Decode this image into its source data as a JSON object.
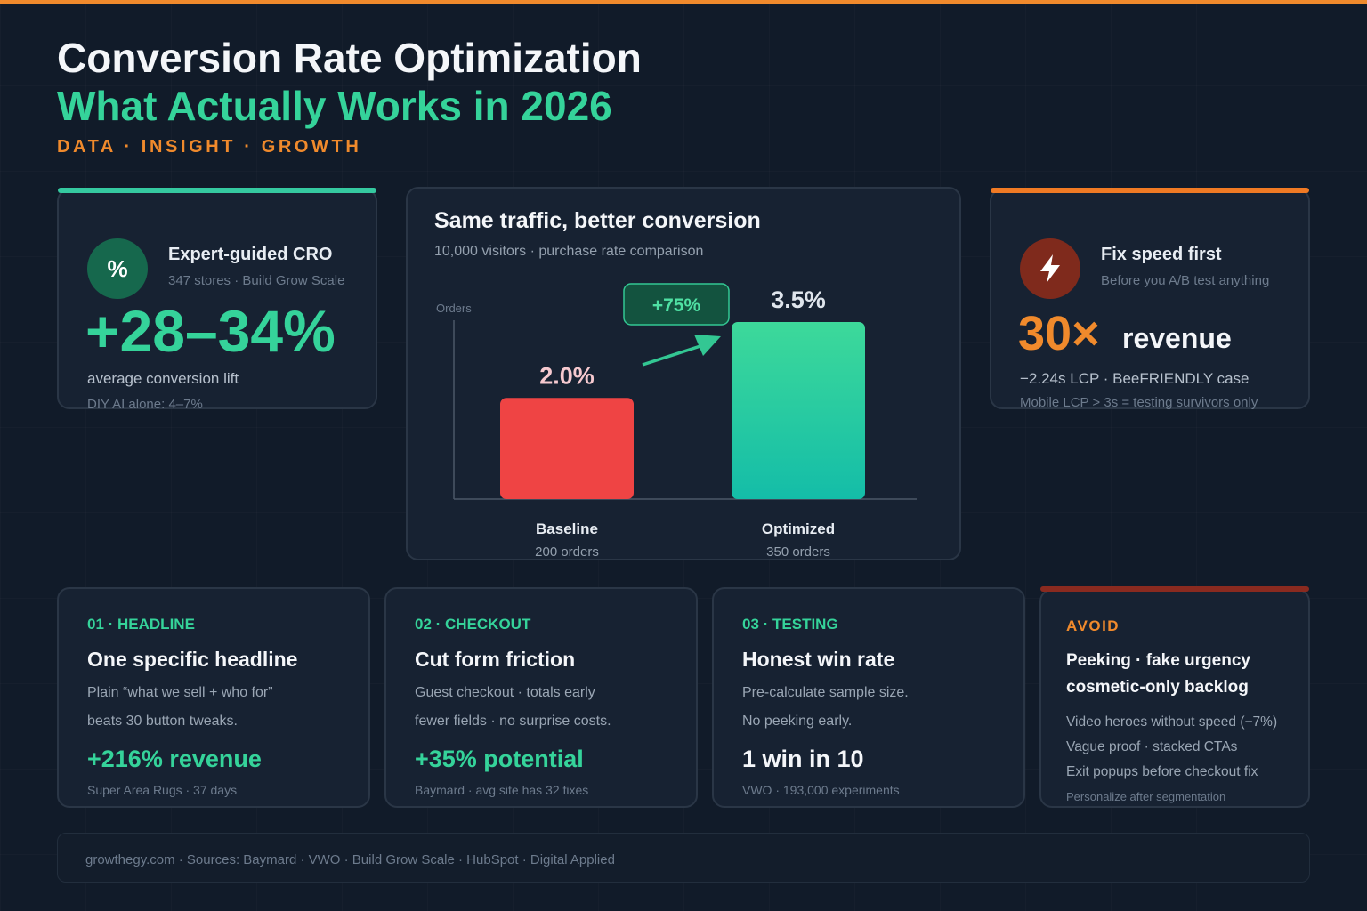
{
  "header": {
    "title": "Conversion Rate Optimization",
    "subtitle": "What Actually Works in 2026",
    "tagline": "DATA · INSIGHT · GROWTH"
  },
  "colors": {
    "accent_green": "#35d39a",
    "accent_orange": "#f08a2c",
    "baseline_red": "#ef4444",
    "optimized_teal": "#1cc1a3"
  },
  "stat_left": {
    "icon": "percent-icon",
    "icon_text": "%",
    "heading": "Expert-guided CRO",
    "sub": "347 stores · Build Grow Scale",
    "value": "+28–34%",
    "desc": "average conversion lift",
    "note": "DIY AI alone: 4–7%"
  },
  "stat_right": {
    "icon": "lightning-icon",
    "heading": "Fix speed first",
    "sub": "Before you A/B test anything",
    "value": "30×",
    "value_suffix": "revenue",
    "desc": "−2.24s LCP · BeeFRIENDLY case",
    "note": "Mobile LCP > 3s = testing survivors only"
  },
  "chart": {
    "title": "Same traffic, better conversion",
    "subtitle": "10,000 visitors · purchase rate comparison",
    "lift_badge": "+75%"
  },
  "chart_data": {
    "type": "bar",
    "title": "Same traffic, better conversion",
    "subtitle": "10,000 visitors · purchase rate comparison",
    "ylabel": "Orders",
    "xlabel": "",
    "ylim": [
      0,
      350
    ],
    "grid": false,
    "categories": [
      "Baseline",
      "Optimized"
    ],
    "values": [
      200,
      350
    ],
    "value_labels": [
      "2.0%",
      "3.5%"
    ],
    "sublabels": [
      "200 orders",
      "350 orders"
    ],
    "annotation": "+75%"
  },
  "cards": [
    {
      "label": "01 · HEADLINE",
      "heading": "One specific headline",
      "line1": "Plain “what we sell + who for”",
      "line2": "beats 30 button tweaks.",
      "stat": "+216% revenue",
      "source": "Super Area Rugs · 37 days"
    },
    {
      "label": "02 · CHECKOUT",
      "heading": "Cut form friction",
      "line1": "Guest checkout · totals early",
      "line2": "fewer fields · no surprise costs.",
      "stat": "+35% potential",
      "source": "Baymard · avg site has 32 fixes"
    },
    {
      "label": "03 · TESTING",
      "heading": "Honest win rate",
      "line1": "Pre-calculate sample size.",
      "line2": "No peeking early.",
      "stat": "1 win in 10",
      "source": "VWO · 193,000 experiments"
    }
  ],
  "avoid": {
    "label": "AVOID",
    "heading1": "Peeking · fake urgency",
    "heading2": "cosmetic-only backlog",
    "items": [
      "Video heroes without speed (−7%)",
      "Vague proof · stacked CTAs",
      "Exit popups before checkout fix"
    ],
    "note": "Personalize after segmentation"
  },
  "footer": {
    "text": "growthegy.com · Sources: Baymard · VWO · Build Grow Scale · HubSpot · Digital Applied"
  }
}
